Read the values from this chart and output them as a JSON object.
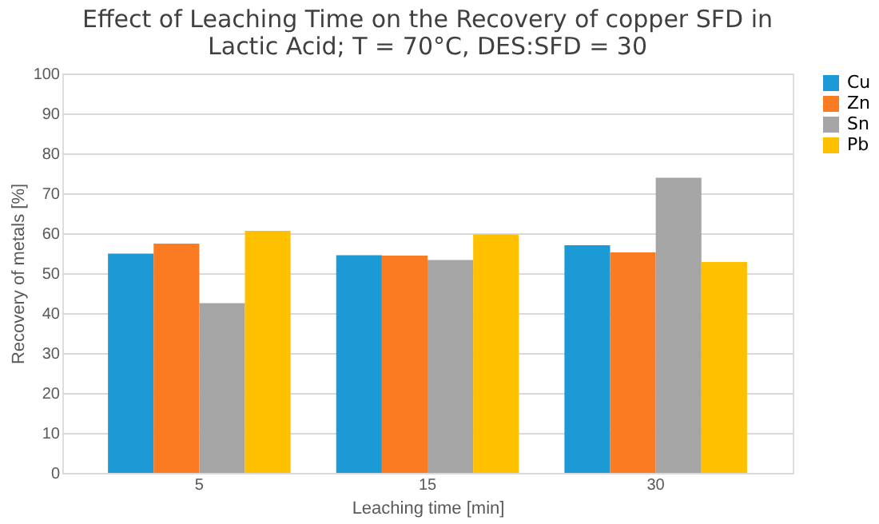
{
  "chart_data": {
    "type": "bar",
    "title": [
      "Effect of Leaching Time on the Recovery of copper SFD in",
      "Lactic Acid; T = 70°C, DES:SFD = 30"
    ],
    "xlabel": "Leaching time [min]",
    "ylabel": "Recovery of metals  [%]",
    "categories": [
      "5",
      "15",
      "30"
    ],
    "series": [
      {
        "name": "Cu",
        "color": "#1b9ad6",
        "values": [
          54.9,
          54.5,
          57.0
        ]
      },
      {
        "name": "Zn",
        "color": "#fb7b22",
        "values": [
          57.4,
          54.4,
          55.2
        ]
      },
      {
        "name": "Sn",
        "color": "#a5a5a5",
        "values": [
          42.5,
          53.3,
          73.9
        ]
      },
      {
        "name": "Pb",
        "color": "#ffc000",
        "values": [
          60.6,
          59.7,
          52.8
        ]
      }
    ],
    "ylim": [
      0,
      100
    ],
    "yticks": [
      0,
      10,
      20,
      30,
      40,
      50,
      60,
      70,
      80,
      90,
      100
    ],
    "grid": "y",
    "legend": "right"
  }
}
